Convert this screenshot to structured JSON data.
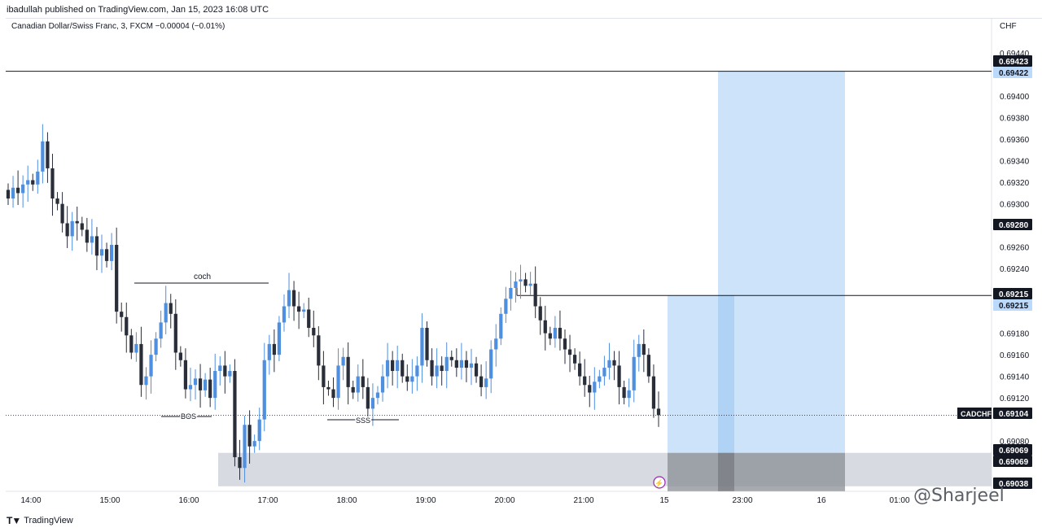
{
  "header": {
    "published": "ibadullah published on TradingView.com, Jan 15, 2023 16:08 UTC"
  },
  "legend": {
    "text": "Canadian Dollar/Swiss Franc, 3, FXCM  −0.00004 (−0.01%)"
  },
  "currency": "CHF",
  "footer": {
    "logo_text": "TradingView",
    "watermark": "@Sharjeel"
  },
  "colors": {
    "up": "#4f8fe0",
    "down": "#2a2e39",
    "target_zone": "#cde3f9",
    "stop_zone": "#d1d4dc",
    "price_label_dark": "#131722",
    "price_label_blue": "#bbd9fb"
  },
  "chart_data": {
    "type": "candlestick",
    "symbol": "CADCHF",
    "timeframe": "3",
    "last_price": 0.69104,
    "ylim": [
      0.6903,
      0.6946
    ],
    "y_ticks": [
      0.6908,
      0.6912,
      0.6914,
      0.6916,
      0.6918,
      0.6924,
      0.6926,
      0.693,
      0.6932,
      0.6934,
      0.6936,
      0.6938,
      0.694,
      0.6944
    ],
    "x_ticks": [
      "14:00",
      "15:00",
      "16:00",
      "17:00",
      "18:00",
      "19:00",
      "20:00",
      "21:00",
      "15",
      "23:00",
      "16",
      "01:00"
    ],
    "price_labels": [
      {
        "value": "0.69423",
        "style": "dark"
      },
      {
        "value": "0.69422",
        "style": "blue"
      },
      {
        "value": "0.69280",
        "style": "dark"
      },
      {
        "value": "0.69215",
        "style": "dark"
      },
      {
        "value": "0.69215",
        "style": "blue"
      },
      {
        "value": "0.69104",
        "style": "dark",
        "tag": "CADCHF"
      },
      {
        "value": "0.69069",
        "style": "dark"
      },
      {
        "value": "0.69069",
        "style": "dark"
      },
      {
        "value": "0.69038",
        "style": "dark"
      }
    ],
    "horizontal_lines": [
      0.69423,
      0.69215
    ],
    "annotations": [
      {
        "text": "coch",
        "price": 0.69228
      },
      {
        "text": "BOS",
        "price": 0.691
      },
      {
        "text": "SSS",
        "price": 0.69096
      }
    ],
    "zones": [
      {
        "kind": "target",
        "from": 0.69215,
        "to": 0.69423
      },
      {
        "kind": "stop",
        "from": 0.69038,
        "to": 0.69069
      }
    ],
    "closes": [
      0.69305,
      0.69315,
      0.6931,
      0.69318,
      0.69322,
      0.69318,
      0.6933,
      0.69358,
      0.69333,
      0.69305,
      0.693,
      0.69282,
      0.6927,
      0.69284,
      0.69282,
      0.69276,
      0.69264,
      0.6927,
      0.69252,
      0.69258,
      0.69247,
      0.69262,
      0.692,
      0.69195,
      0.69178,
      0.69162,
      0.6917,
      0.69132,
      0.6914,
      0.6916,
      0.69175,
      0.6919,
      0.69208,
      0.69198,
      0.69162,
      0.69155,
      0.69128,
      0.69132,
      0.69138,
      0.69127,
      0.69137,
      0.6912,
      0.69145,
      0.6915,
      0.6914,
      0.69145,
      0.69065,
      0.69055,
      0.69095,
      0.69075,
      0.6908,
      0.691,
      0.69155,
      0.6917,
      0.6916,
      0.6919,
      0.69205,
      0.6922,
      0.69205,
      0.692,
      0.69202,
      0.69185,
      0.69178,
      0.6915,
      0.6913,
      0.69128,
      0.6912,
      0.6915,
      0.69158,
      0.6913,
      0.69125,
      0.6914,
      0.6913,
      0.6911,
      0.6912,
      0.69125,
      0.6914,
      0.69155,
      0.69145,
      0.69155,
      0.6914,
      0.69135,
      0.6914,
      0.6915,
      0.69185,
      0.69155,
      0.6914,
      0.6915,
      0.69145,
      0.69158,
      0.69155,
      0.69148,
      0.69155,
      0.69148,
      0.69152,
      0.6914,
      0.6913,
      0.69138,
      0.69165,
      0.69175,
      0.69198,
      0.69212,
      0.69222,
      0.69228,
      0.6923,
      0.69224,
      0.69226,
      0.69205,
      0.69192,
      0.6918,
      0.69175,
      0.69185,
      0.69175,
      0.69165,
      0.6916,
      0.69152,
      0.6914,
      0.69132,
      0.69125,
      0.69135,
      0.6914,
      0.69148,
      0.69155,
      0.6915,
      0.6913,
      0.6912,
      0.69127,
      0.69158,
      0.6917,
      0.6916,
      0.6914,
      0.6911,
      0.69104
    ]
  }
}
